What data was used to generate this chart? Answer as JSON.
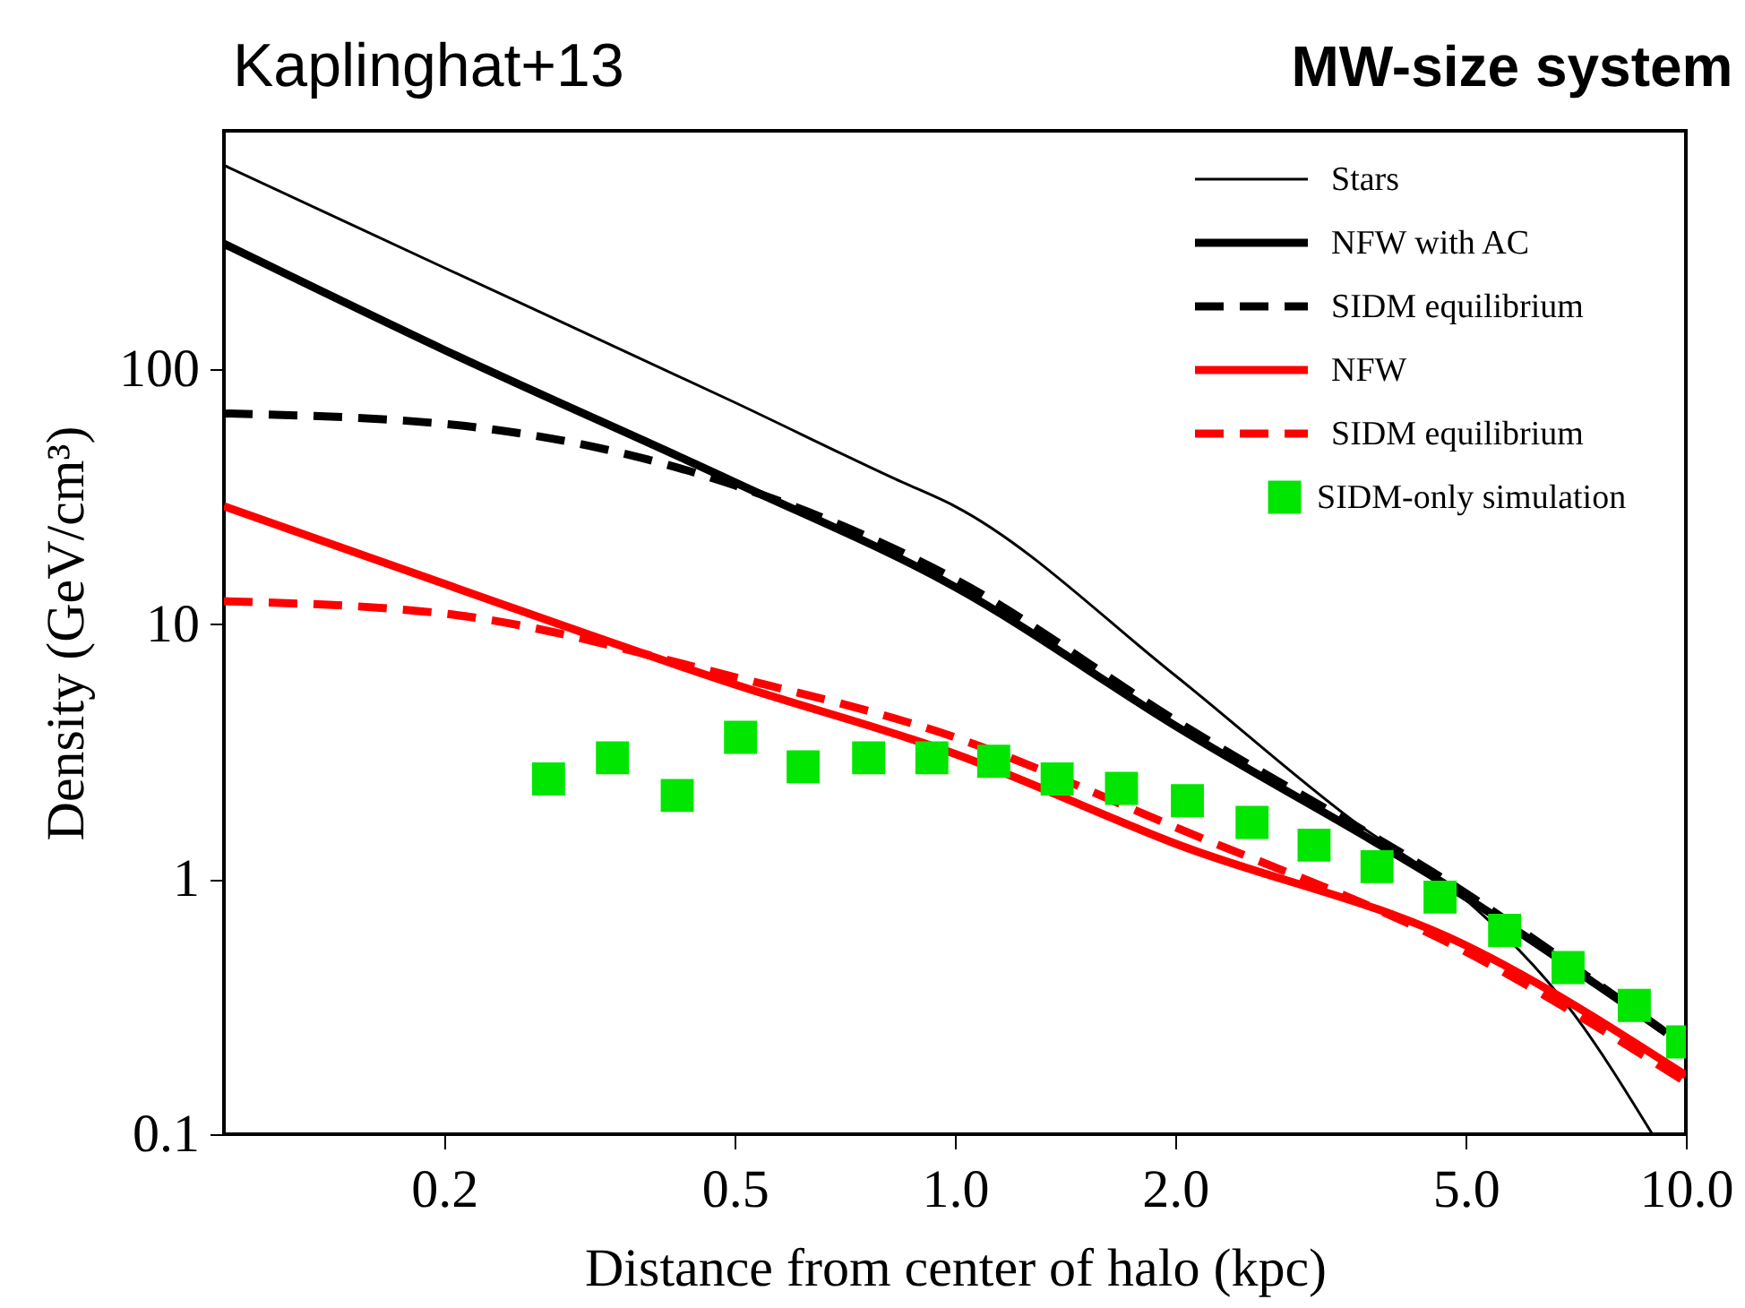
{
  "chart_data": {
    "type": "line",
    "title": "MW-size system",
    "annotations": [
      "Kaplinghat+13"
    ],
    "xlabel": "Distance from center of halo (kpc)",
    "ylabel": "Density (GeV/cm³)",
    "log": "xy",
    "xlim": [
      0.1,
      10
    ],
    "ylim": [
      0.1,
      860
    ],
    "xticks": [
      0.2,
      0.5,
      {
        "value": 1,
        "label": "1.0"
      },
      {
        "value": 2,
        "label": "2.0"
      },
      {
        "value": 5,
        "label": "5.0"
      },
      {
        "value": 10,
        "label": "10.0"
      }
    ],
    "yticks": [
      0.1,
      1,
      10,
      100
    ],
    "grid": false,
    "legend": "top right",
    "marker": "none",
    "series": [
      {
        "name": "Stars",
        "color": "#000000",
        "type": "line",
        "line_style": "solid",
        "x": [
          0.1,
          0.2,
          0.5,
          0.83,
          1.0,
          2.0,
          3.5,
          5.0,
          7.0,
          9.0
        ],
        "values": [
          630,
          250,
          74,
          37,
          29,
          6.3,
          1.7,
          0.83,
          0.3,
          0.1
        ]
      },
      {
        "name": "NFW with AC",
        "color": "#000000",
        "type": "line",
        "line_style": "solid",
        "x": [
          0.1,
          0.2,
          0.5,
          1.0,
          2.0,
          5.0,
          9.4
        ],
        "values": [
          310,
          119,
          36,
          14,
          4.0,
          0.85,
          0.25
        ]
      },
      {
        "name": "SIDM equilibrium",
        "color": "#000000",
        "type": "line",
        "line_style": "dashed",
        "x": [
          0.1,
          0.2,
          0.5,
          1.0,
          2.0,
          5.0,
          9.4
        ],
        "values": [
          67,
          61,
          35,
          15,
          4.2,
          0.88,
          0.25
        ]
      },
      {
        "name": "NFW",
        "color": "#ff0000",
        "type": "line",
        "line_style": "solid",
        "x": [
          0.1,
          0.2,
          0.5,
          1.0,
          2.0,
          5.0,
          10
        ],
        "values": [
          29,
          14.4,
          5.8,
          3.1,
          1.38,
          0.55,
          0.17
        ]
      },
      {
        "name": "SIDM equilibrium",
        "color": "#ff0000",
        "type": "line",
        "line_style": "dashed",
        "x": [
          0.1,
          0.2,
          0.5,
          1.0,
          2.0,
          5.0,
          10
        ],
        "values": [
          12.3,
          11,
          6.2,
          3.6,
          1.6,
          0.52,
          0.16
        ]
      },
      {
        "name": "SIDM-only simulation",
        "color": "#00e600",
        "type": "scatter",
        "marker": "square",
        "x": [
          0.278,
          0.34,
          0.417,
          0.509,
          0.62,
          0.762,
          0.93,
          1.13,
          1.38,
          1.69,
          2.08,
          2.55,
          3.1,
          3.78,
          4.61,
          5.65,
          6.9,
          8.5,
          9.9
        ],
        "values": [
          2.47,
          2.99,
          2.13,
          3.6,
          2.76,
          2.99,
          2.99,
          2.9,
          2.47,
          2.27,
          2.03,
          1.67,
          1.36,
          1.12,
          0.85,
          0.63,
          0.45,
          0.32,
          0.23
        ]
      }
    ]
  }
}
